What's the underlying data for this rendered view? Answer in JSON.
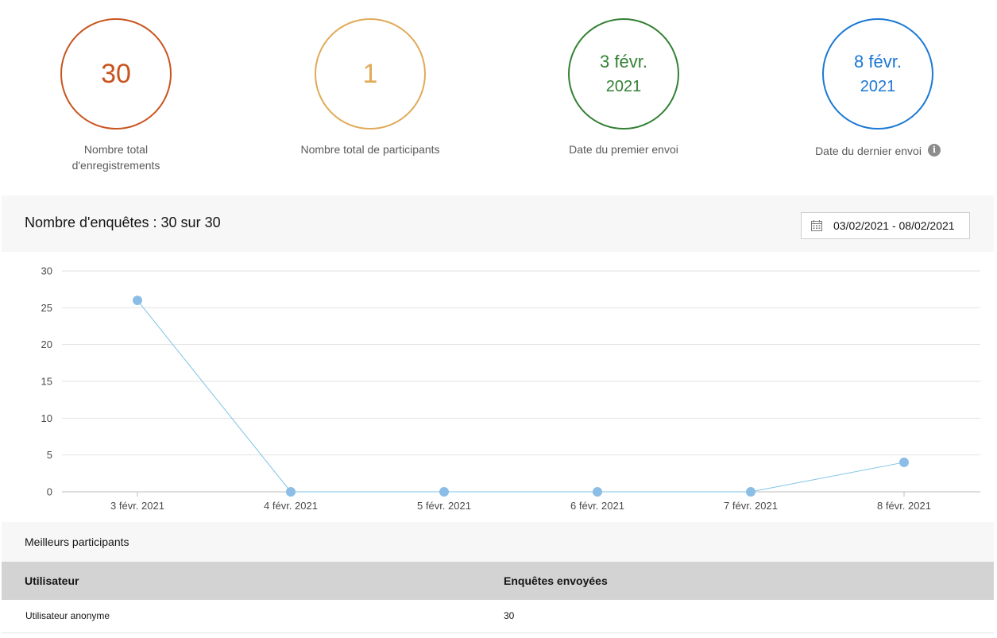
{
  "stats": [
    {
      "value": "30",
      "label_line1": "Nombre total",
      "label_line2": "d'enregistrements",
      "color": "#c8541e"
    },
    {
      "value": "1",
      "label_line1": "Nombre total de participants",
      "label_line2": "",
      "color": "#e0aa58"
    },
    {
      "date_main": "3 févr.",
      "date_year": "2021",
      "label_line1": "Date du premier envoi",
      "color": "#338033"
    },
    {
      "date_main": "8 févr.",
      "date_year": "2021",
      "label_line1": "Date du dernier envoi",
      "color": "#1b78d4",
      "info_icon": "info-icon"
    }
  ],
  "chart_header": {
    "title": "Nombre d'enquêtes : 30 sur 30",
    "date_range": "03/02/2021 - 08/02/2021",
    "calendar_icon": "calendar-icon"
  },
  "chart_data": {
    "type": "line",
    "categories": [
      "3 févr. 2021",
      "4 févr. 2021",
      "5 févr. 2021",
      "6 févr. 2021",
      "7 févr. 2021",
      "8 févr. 2021"
    ],
    "values": [
      26,
      0,
      0,
      0,
      0,
      4
    ],
    "ylim": [
      0,
      30
    ],
    "yticks": [
      0,
      5,
      10,
      15,
      20,
      25,
      30
    ],
    "grid": true,
    "line_color": "#7fc4e6",
    "point_color": "#8bbde6"
  },
  "top_participants": {
    "title": "Meilleurs participants",
    "columns": [
      "Utilisateur",
      "Enquêtes envoyées"
    ],
    "rows": [
      [
        "Utilisateur anonyme",
        "30"
      ]
    ]
  }
}
